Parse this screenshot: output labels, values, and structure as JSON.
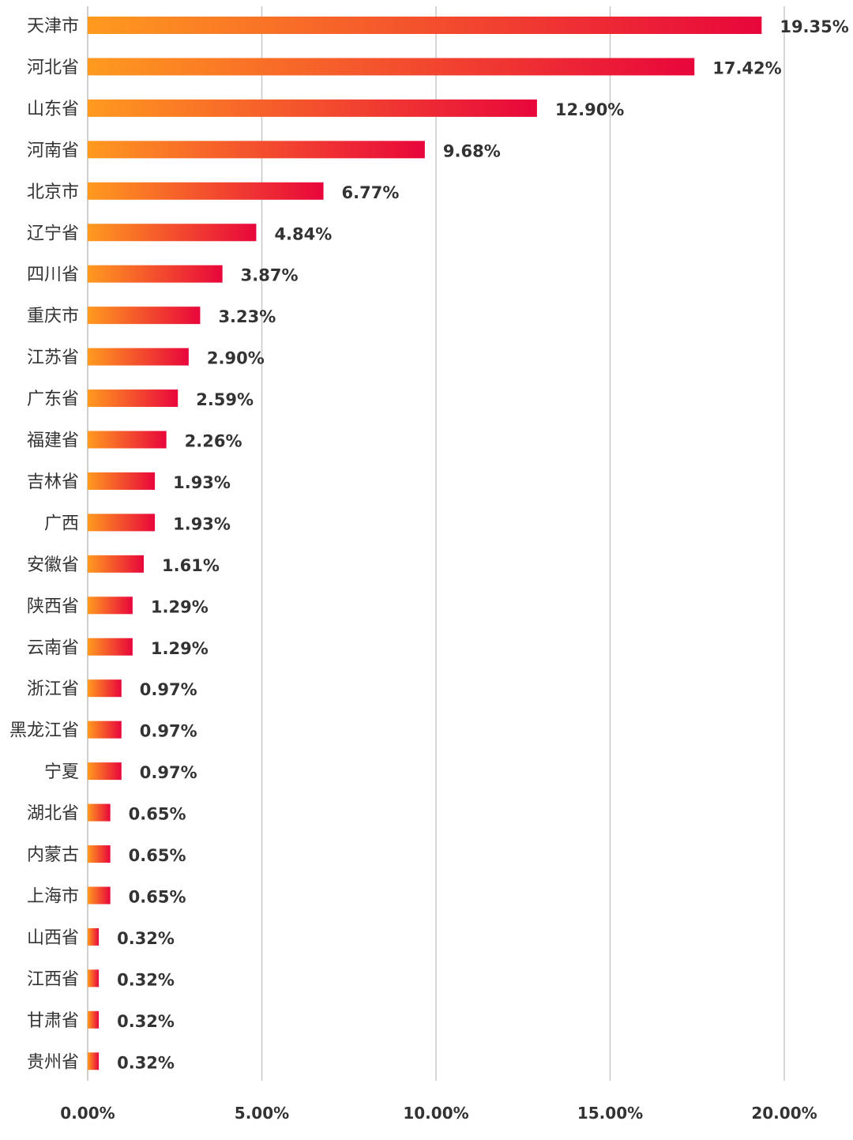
{
  "chart_data": {
    "type": "bar",
    "orientation": "horizontal",
    "title": "",
    "xlabel": "",
    "ylabel": "",
    "xlim": [
      0,
      0.2
    ],
    "x_ticks": [
      0,
      0.05,
      0.1,
      0.15,
      0.2
    ],
    "x_tick_labels": [
      "0.00%",
      "5.00%",
      "10.00%",
      "15.00%",
      "20.00%"
    ],
    "grid": "vertical",
    "colors": {
      "gradient_start": "#ff9a1f",
      "gradient_end": "#e8063b",
      "text": "#333333",
      "grid": "#c8c8c8"
    },
    "categories": [
      "天津市",
      "河北省",
      "山东省",
      "河南省",
      "北京市",
      "辽宁省",
      "四川省",
      "重庆市",
      "江苏省",
      "广东省",
      "福建省",
      "吉林省",
      "广西",
      "安徽省",
      "陕西省",
      "云南省",
      "浙江省",
      "黑龙江省",
      "宁夏",
      "湖北省",
      "内蒙古",
      "上海市",
      "山西省",
      "江西省",
      "甘肃省",
      "贵州省"
    ],
    "values": [
      0.1935,
      0.1742,
      0.129,
      0.0968,
      0.0677,
      0.0484,
      0.0387,
      0.0323,
      0.029,
      0.0259,
      0.0226,
      0.0193,
      0.0193,
      0.0161,
      0.0129,
      0.0129,
      0.0097,
      0.0097,
      0.0097,
      0.0065,
      0.0065,
      0.0065,
      0.0032,
      0.0032,
      0.0032,
      0.0032
    ],
    "value_labels": [
      "19.35%",
      "17.42%",
      "12.90%",
      "9.68%",
      "6.77%",
      "4.84%",
      "3.87%",
      "3.23%",
      "2.90%",
      "2.59%",
      "2.26%",
      "1.93%",
      "1.93%",
      "1.61%",
      "1.29%",
      "1.29%",
      "0.97%",
      "0.97%",
      "0.97%",
      "0.65%",
      "0.65%",
      "0.65%",
      "0.32%",
      "0.32%",
      "0.32%",
      "0.32%"
    ]
  }
}
